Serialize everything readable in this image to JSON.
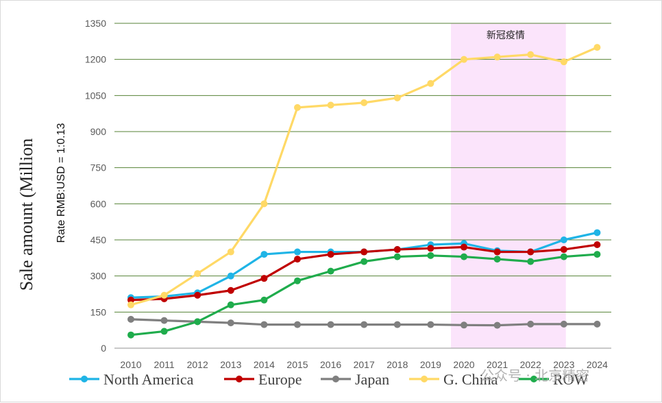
{
  "chart_data": {
    "type": "line",
    "title": "",
    "ylabel": "Sale amount (Million",
    "rate_note": "Rate RMB:USD = 1:0.13",
    "annotation": "新冠疫情",
    "highlight_range": [
      "2020",
      "2023"
    ],
    "ylim": [
      0,
      1350
    ],
    "yticks": [
      0,
      150,
      300,
      450,
      600,
      750,
      900,
      1050,
      1200,
      1350
    ],
    "ytick_labels": [
      "0",
      "150",
      "300",
      "450",
      "600",
      "750",
      "900",
      "1050",
      "1200",
      "1350"
    ],
    "categories": [
      "2010",
      "2011",
      "2012",
      "2013",
      "2014",
      "2015",
      "2016",
      "2017",
      "2018",
      "2019",
      "2020",
      "2021",
      "2022",
      "2023",
      "2024"
    ],
    "series": [
      {
        "name": "North America",
        "color": "#1fb4e6",
        "values": [
          210,
          215,
          230,
          300,
          390,
          400,
          400,
          400,
          410,
          430,
          435,
          405,
          400,
          450,
          480
        ]
      },
      {
        "name": "Europe",
        "color": "#c00000",
        "values": [
          200,
          205,
          220,
          240,
          290,
          370,
          390,
          400,
          410,
          415,
          420,
          400,
          400,
          410,
          430
        ]
      },
      {
        "name": "Japan",
        "color": "#7f7f7f",
        "values": [
          120,
          115,
          110,
          105,
          98,
          98,
          98,
          98,
          98,
          98,
          96,
          95,
          100,
          100,
          100
        ]
      },
      {
        "name": "G. China",
        "color": "#ffd966",
        "values": [
          180,
          220,
          310,
          400,
          600,
          1000,
          1010,
          1020,
          1040,
          1100,
          1200,
          1210,
          1220,
          1190,
          1250
        ]
      },
      {
        "name": "ROW",
        "color": "#1fac4c",
        "values": [
          55,
          70,
          110,
          180,
          200,
          280,
          320,
          360,
          380,
          385,
          380,
          370,
          360,
          380,
          390
        ]
      }
    ]
  },
  "watermark": "公众号 · 北京精密",
  "colors": {
    "grid": "#548235",
    "axis": "#a6a6a6",
    "highlight": "#fbe4fb"
  }
}
